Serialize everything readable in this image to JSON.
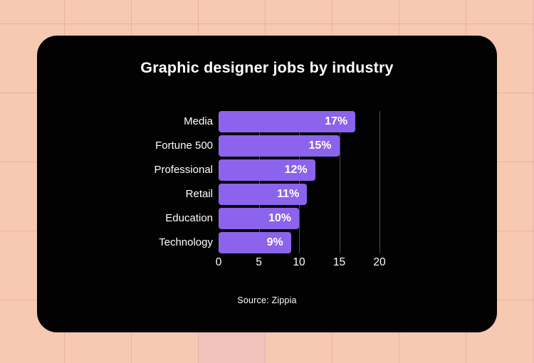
{
  "page": {
    "background_color": "#f7c9b1",
    "grid_line_color": "rgba(199,124,139,0.30)",
    "accent_cell_color": "#f1c2bb"
  },
  "card": {
    "background_color": "#020202"
  },
  "chart_data": {
    "type": "bar",
    "orientation": "horizontal",
    "title": "Graphic designer jobs by industry",
    "categories": [
      "Media",
      "Fortune 500",
      "Professional",
      "Retail",
      "Education",
      "Technology"
    ],
    "values": [
      17,
      15,
      12,
      11,
      10,
      9
    ],
    "value_labels": [
      "17%",
      "15%",
      "12%",
      "11%",
      "10%",
      "9%"
    ],
    "xlim": [
      0,
      20
    ],
    "xticks": [
      0,
      5,
      10,
      15,
      20
    ],
    "bar_color": "#8c63ec",
    "plot_gridline_color": "#4c4c50",
    "text_color": "#ffffff",
    "grid": true,
    "legend": false,
    "source": "Source: Zippia"
  }
}
